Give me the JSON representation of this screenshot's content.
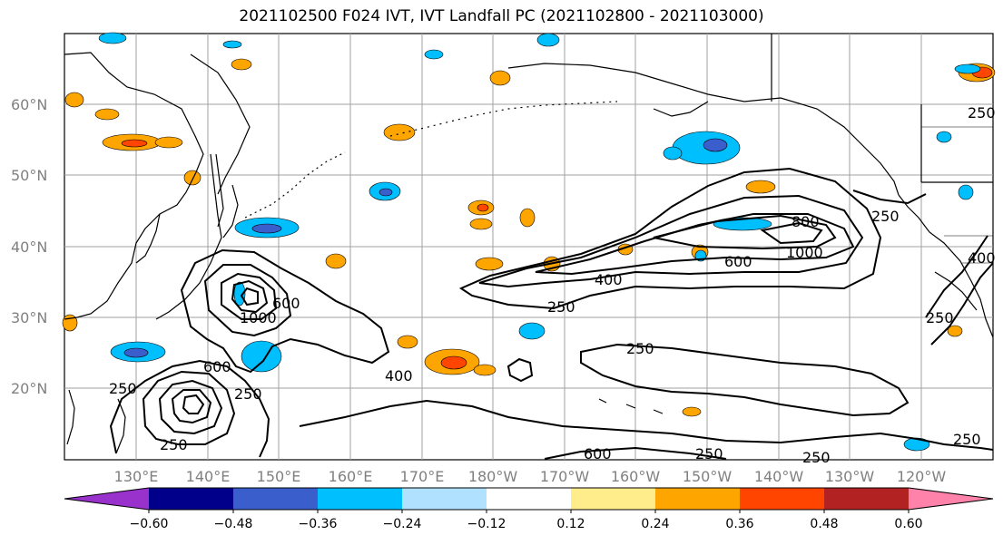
{
  "title": "2021102500 F024 IVT, IVT Landfall PC (2021102800 - 2021103000)",
  "lat_labels": [
    "60°N",
    "50°N",
    "40°N",
    "30°N",
    "20°N"
  ],
  "lon_labels": [
    "130°E",
    "140°E",
    "150°E",
    "160°E",
    "170°E",
    "180°W",
    "170°W",
    "160°W",
    "150°W",
    "140°W",
    "130°W",
    "120°W"
  ],
  "contour_labels": {
    "low": "250",
    "mid": "400",
    "high": "600",
    "max": "800",
    "top": "1000"
  },
  "colorbar": {
    "colors": [
      "#9932cc",
      "#00008b",
      "#3a5fcd",
      "#00bfff",
      "#b0e2ff",
      "#ffffff",
      "#ffec8b",
      "#ffa500",
      "#ff4500",
      "#b22222",
      "#ff82ab"
    ],
    "tick_labels": [
      "−0.60",
      "−0.48",
      "−0.36",
      "−0.24",
      "−0.12",
      "0.12",
      "0.24",
      "0.36",
      "0.48",
      "0.60"
    ]
  },
  "colors": {
    "land_line": "#000000",
    "grid": "#a0a0a0",
    "contour": "#000000"
  }
}
